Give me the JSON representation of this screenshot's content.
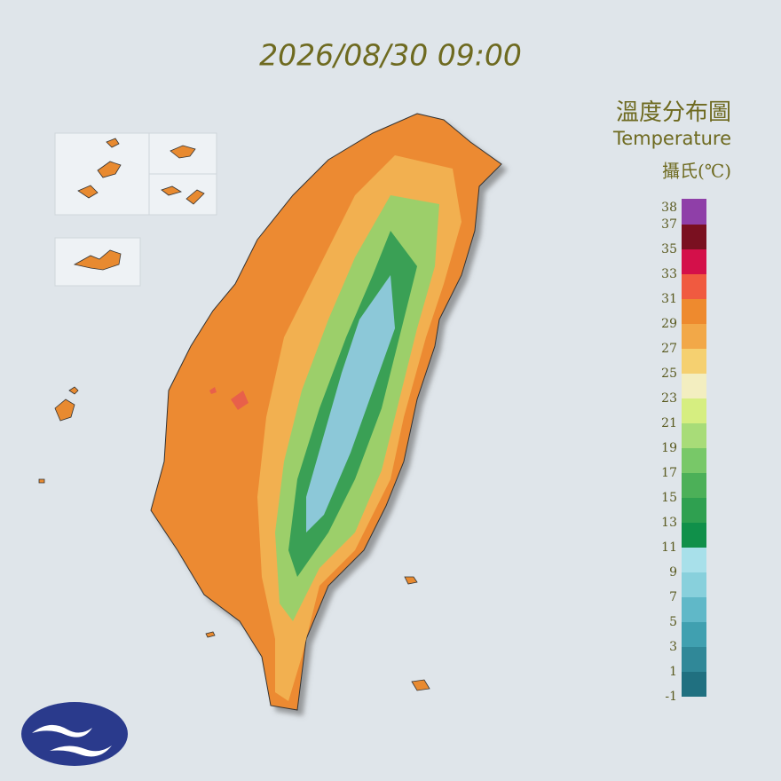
{
  "header": {
    "timestamp": "2026/08/30 09:00"
  },
  "legend": {
    "title": "溫度分布圖",
    "subtitle": "Temperature",
    "unit": "攝氏(℃)",
    "ticks": [
      38,
      37,
      35,
      33,
      31,
      29,
      27,
      25,
      23,
      21,
      19,
      17,
      15,
      13,
      11,
      9,
      7,
      5,
      3,
      1,
      -1
    ],
    "colors": [
      "#8f3fa8",
      "#7a1020",
      "#d4104a",
      "#f05a40",
      "#ee8a2e",
      "#f2a848",
      "#f5d070",
      "#f3eec0",
      "#d6ee80",
      "#a8dc78",
      "#78c868",
      "#4cb058",
      "#2fa050",
      "#10904a",
      "#a8e0ea",
      "#88d0dc",
      "#60b8c8",
      "#40a0b0",
      "#308898",
      "#207080"
    ]
  }
}
